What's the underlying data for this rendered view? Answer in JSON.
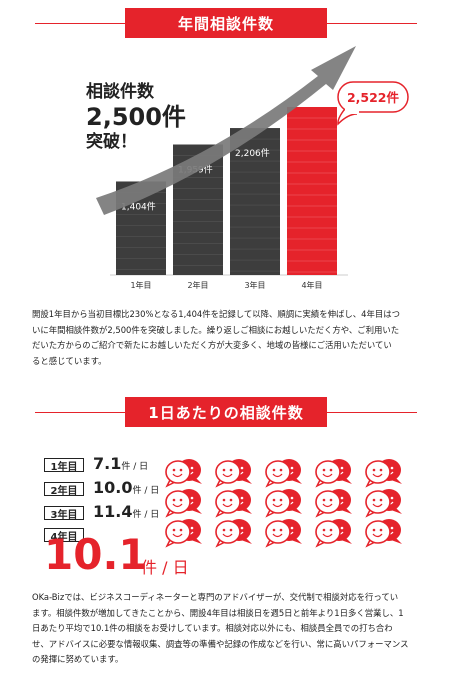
{
  "section1": {
    "title": "年間相談件数"
  },
  "headline": {
    "line1": "相談件数",
    "line2": "2,500件",
    "line3": "突破！"
  },
  "callout": "2,522件",
  "chart_data": {
    "type": "bar",
    "categories": [
      "1年目",
      "2年目",
      "3年目",
      "4年目"
    ],
    "values": [
      1404,
      1959,
      2206,
      2522
    ],
    "labels": [
      "1,404件",
      "1,959件",
      "2,206件"
    ],
    "highlight_index": 3,
    "ylim": [
      0,
      2600
    ],
    "colors": {
      "bar": "#3d3d3d",
      "highlight": "#e5232b",
      "arrow": "#7a7a7a"
    }
  },
  "paragraph1": [
    "開設1年目から当初目標比230%となる1,404件を記録して以降、順調に実績を伸ばし、4年目はつ",
    "いに年間相談件数が2,500件を突破しました。繰り返しご相談にお越しいただく方や、ご利用いた",
    "だいた方からのご紹介で新たにお越しいただく方が大変多く、地域の皆様にご活用いただいてい",
    "ると感じています。"
  ],
  "section2": {
    "title": "1日あたりの相談件数"
  },
  "daily": [
    {
      "label": "1年目",
      "value": "7.1",
      "unit": "件 / 日"
    },
    {
      "label": "2年目",
      "value": "10.0",
      "unit": "件 / 日"
    },
    {
      "label": "3年目",
      "value": "11.4",
      "unit": "件 / 日"
    }
  ],
  "daily_highlight": {
    "label": "4年目",
    "value": "10.1",
    "unit": "件 / 日"
  },
  "icon_count": 15,
  "paragraph2": [
    "OKa-Bizでは、ビジネスコーディネーターと専門のアドバイザーが、交代制で相談対応を行ってい",
    "ます。相談件数が増加してきたことから、開設4年目は相談日を週5日と前年より1日多く営業し、1",
    "日あたり平均で10.1件の相談をお受けしています。相談対応以外にも、相談員全員での打ち合わ",
    "せ、アドバイスに必要な情報収集、調査等の準備や記録の作成などを行い、常に高いパフォーマンス",
    "の発揮に努めています。"
  ]
}
